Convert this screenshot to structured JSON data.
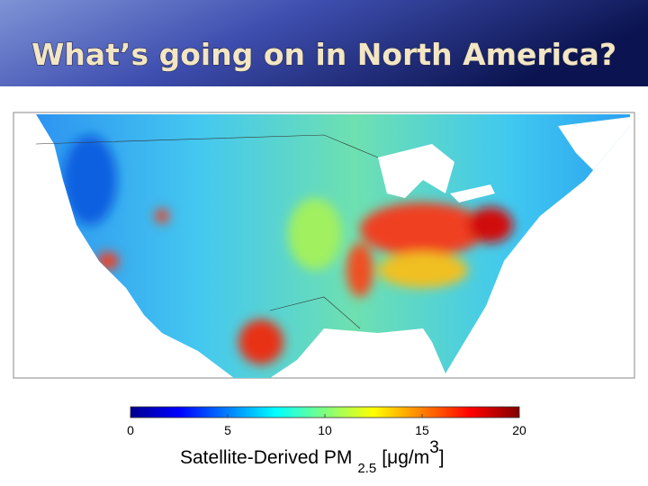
{
  "title": "What’s going on in North America?",
  "colorbar": {
    "lim": [
      0,
      20
    ],
    "ticks": [
      0,
      5,
      10,
      15,
      20
    ],
    "label": {
      "main": "Satellite-Derived PM",
      "subscript": "2.5",
      "unit": "[μg/m",
      "superscript": "3",
      "close": "]"
    }
  }
}
